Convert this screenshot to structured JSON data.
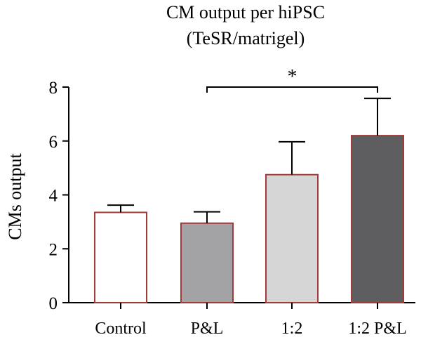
{
  "chart_data": {
    "type": "bar",
    "title": "CM output per hiPSC",
    "subtitle": "(TeSR/matrigel)",
    "xlabel": "",
    "ylabel": "CMs output",
    "ylim": [
      0,
      8
    ],
    "yticks": [
      "0",
      "2",
      "4",
      "6",
      "8"
    ],
    "categories": [
      "Control",
      "P&L",
      "1:2",
      "1:2 P&L"
    ],
    "values": [
      3.35,
      2.95,
      4.75,
      6.2
    ],
    "errors": [
      0.27,
      0.42,
      1.22,
      1.38
    ],
    "bar_colors": [
      "#ffffff",
      "#a3a3a6",
      "#d6d6d6",
      "#5e5e61"
    ],
    "bar_outline": "#a33a3a",
    "significance": {
      "from": "P&L",
      "to": "1:2 P&L",
      "label": "*"
    }
  }
}
